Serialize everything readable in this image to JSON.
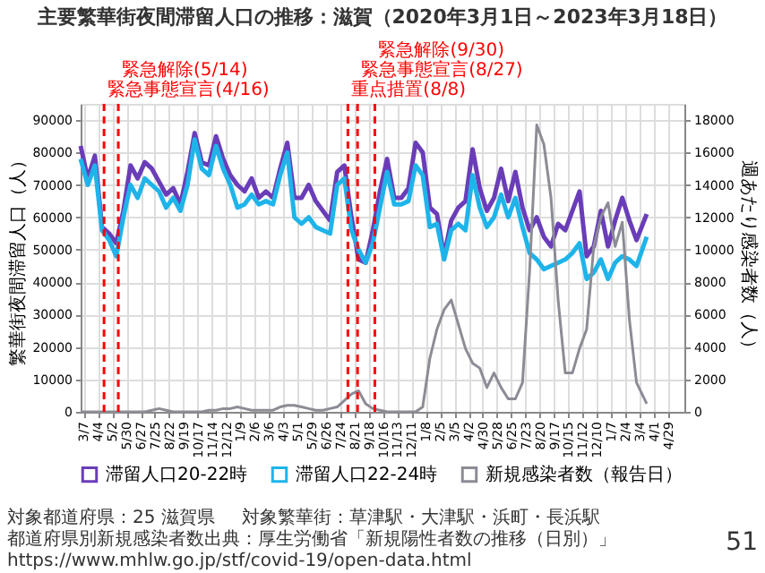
{
  "chart_data": {
    "type": "line",
    "title": "主要繁華街夜間滞留人口の推移：滋賀（2020年3月1日～2023年3月18日）",
    "ylabel": "繁華街夜間滞留人口（人）",
    "y2label": "週あたり感染者数（人）",
    "x": [
      "2020-03-01",
      "2020-03-15",
      "2020-03-29",
      "2020-04-12",
      "2020-04-26",
      "2020-05-10",
      "2020-05-24",
      "2020-06-07",
      "2020-06-21",
      "2020-07-05",
      "2020-07-19",
      "2020-08-02",
      "2020-08-16",
      "2020-08-30",
      "2020-09-13",
      "2020-09-27",
      "2020-10-11",
      "2020-10-25",
      "2020-11-08",
      "2020-11-22",
      "2020-12-06",
      "2020-12-20",
      "2021-01-03",
      "2021-01-17",
      "2021-01-31",
      "2021-02-14",
      "2021-02-28",
      "2021-03-14",
      "2021-03-28",
      "2021-04-11",
      "2021-04-25",
      "2021-05-09",
      "2021-05-23",
      "2021-06-06",
      "2021-06-20",
      "2021-07-04",
      "2021-07-18",
      "2021-08-01",
      "2021-08-15",
      "2021-08-29",
      "2021-09-12",
      "2021-09-26",
      "2021-10-10",
      "2021-10-24",
      "2021-11-07",
      "2021-11-21",
      "2021-12-05",
      "2021-12-19",
      "2022-01-02",
      "2022-01-16",
      "2022-01-30",
      "2022-02-13",
      "2022-02-27",
      "2022-03-13",
      "2022-03-27",
      "2022-04-10",
      "2022-04-24",
      "2022-05-08",
      "2022-05-22",
      "2022-06-05",
      "2022-06-19",
      "2022-07-03",
      "2022-07-17",
      "2022-07-31",
      "2022-08-14",
      "2022-08-28",
      "2022-09-11",
      "2022-09-25",
      "2022-10-09",
      "2022-10-23",
      "2022-11-06",
      "2022-11-20",
      "2022-12-04",
      "2022-12-18",
      "2023-01-01",
      "2023-01-15",
      "2023-01-29",
      "2023-02-12",
      "2023-02-26",
      "2023-03-18"
    ],
    "series": [
      {
        "name": "滞留人口20-22時",
        "color": "#6a3db8",
        "values": [
          82000,
          72000,
          79000,
          57000,
          55000,
          52000,
          62000,
          76000,
          72000,
          77000,
          75000,
          71000,
          67000,
          69000,
          64000,
          74000,
          86000,
          77000,
          76000,
          85000,
          78000,
          73000,
          70000,
          68000,
          72000,
          66000,
          68000,
          66000,
          75000,
          83000,
          66000,
          66000,
          70000,
          65000,
          62000,
          59000,
          74000,
          76000,
          60000,
          47000,
          46000,
          56000,
          68000,
          78000,
          66000,
          66000,
          69000,
          83000,
          80000,
          63000,
          61000,
          48000,
          59000,
          63000,
          65000,
          81000,
          69000,
          62000,
          66000,
          75000,
          65000,
          74000,
          63000,
          56000,
          60000,
          54000,
          51000,
          58000,
          56000,
          62000,
          68000,
          48000,
          51000,
          62000,
          51000,
          59000,
          66000,
          59000,
          53000,
          61000
        ]
      },
      {
        "name": "滞留人口22-24時",
        "color": "#1eb4ea",
        "values": [
          78000,
          70000,
          76000,
          56000,
          53000,
          48000,
          60000,
          70000,
          66000,
          72000,
          70000,
          68000,
          63000,
          66000,
          62000,
          70000,
          84000,
          75000,
          73000,
          82000,
          75000,
          70000,
          63000,
          64000,
          67000,
          64000,
          65000,
          64000,
          73000,
          80000,
          60000,
          58000,
          60000,
          57000,
          56000,
          55000,
          70000,
          72000,
          56000,
          50000,
          46000,
          52000,
          63000,
          74000,
          64000,
          64000,
          65000,
          76000,
          73000,
          57000,
          58000,
          47000,
          56000,
          58000,
          56000,
          73000,
          63000,
          57000,
          60000,
          67000,
          60000,
          66000,
          57000,
          49000,
          47000,
          44000,
          45000,
          46000,
          47000,
          49000,
          52000,
          41000,
          43000,
          47000,
          41000,
          46000,
          48000,
          47000,
          45000,
          54000
        ]
      },
      {
        "name": "新規感染者数（報告日）",
        "color": "#8c8c96",
        "axis": "y2",
        "values": [
          0,
          0,
          0,
          0,
          0,
          0,
          0,
          0,
          0,
          0,
          100,
          200,
          100,
          0,
          0,
          0,
          0,
          0,
          100,
          100,
          200,
          200,
          300,
          200,
          100,
          100,
          100,
          100,
          300,
          400,
          400,
          300,
          200,
          100,
          100,
          200,
          300,
          700,
          1100,
          1300,
          500,
          200,
          100,
          0,
          0,
          0,
          0,
          0,
          300,
          3300,
          5100,
          6300,
          6900,
          5400,
          3900,
          3000,
          2700,
          1500,
          2400,
          1500,
          800,
          800,
          1800,
          8700,
          17700,
          16500,
          13200,
          6900,
          2400,
          2400,
          3900,
          5100,
          10200,
          12000,
          12900,
          10200,
          11700,
          5700,
          1800,
          500
        ]
      }
    ],
    "xlim": [
      "2020-03-01",
      "2023-05-31"
    ],
    "xticks": [
      {
        "value": "2020-03-07",
        "label": "3/7"
      },
      {
        "value": "2020-04-04",
        "label": "4/4"
      },
      {
        "value": "2020-05-02",
        "label": "5/2"
      },
      {
        "value": "2020-05-30",
        "label": "5/30"
      },
      {
        "value": "2020-06-27",
        "label": "6/27"
      },
      {
        "value": "2020-07-25",
        "label": "7/25"
      },
      {
        "value": "2020-08-22",
        "label": "8/22"
      },
      {
        "value": "2020-09-19",
        "label": "9/19"
      },
      {
        "value": "2020-10-17",
        "label": "10/17"
      },
      {
        "value": "2020-11-14",
        "label": "11/14"
      },
      {
        "value": "2020-12-12",
        "label": "12/12"
      },
      {
        "value": "2021-01-09",
        "label": "1/9"
      },
      {
        "value": "2021-02-06",
        "label": "2/6"
      },
      {
        "value": "2021-03-06",
        "label": "3/6"
      },
      {
        "value": "2021-04-03",
        "label": "4/3"
      },
      {
        "value": "2021-05-01",
        "label": "5/1"
      },
      {
        "value": "2021-05-29",
        "label": "5/29"
      },
      {
        "value": "2021-06-26",
        "label": "6/26"
      },
      {
        "value": "2021-07-24",
        "label": "7/24"
      },
      {
        "value": "2021-08-21",
        "label": "8/21"
      },
      {
        "value": "2021-09-18",
        "label": "9/18"
      },
      {
        "value": "2021-10-16",
        "label": "10/16"
      },
      {
        "value": "2021-11-13",
        "label": "11/13"
      },
      {
        "value": "2021-12-11",
        "label": "12/11"
      },
      {
        "value": "2022-01-08",
        "label": "1/8"
      },
      {
        "value": "2022-02-05",
        "label": "2/5"
      },
      {
        "value": "2022-03-05",
        "label": "3/5"
      },
      {
        "value": "2022-04-02",
        "label": "4/2"
      },
      {
        "value": "2022-04-30",
        "label": "4/30"
      },
      {
        "value": "2022-05-28",
        "label": "5/28"
      },
      {
        "value": "2022-06-25",
        "label": "6/25"
      },
      {
        "value": "2022-07-23",
        "label": "7/23"
      },
      {
        "value": "2022-08-20",
        "label": "8/20"
      },
      {
        "value": "2022-09-17",
        "label": "9/17"
      },
      {
        "value": "2022-10-15",
        "label": "10/15"
      },
      {
        "value": "2022-11-12",
        "label": "11/12"
      },
      {
        "value": "2022-12-10",
        "label": "12/10"
      },
      {
        "value": "2023-01-07",
        "label": "1/7"
      },
      {
        "value": "2023-02-04",
        "label": "2/4"
      },
      {
        "value": "2023-03-04",
        "label": "3/4"
      },
      {
        "value": "2023-04-01",
        "label": "4/1"
      },
      {
        "value": "2023-04-29",
        "label": "4/29"
      }
    ],
    "ylim": [
      0,
      95000
    ],
    "yticks": [
      0,
      10000,
      20000,
      30000,
      40000,
      50000,
      60000,
      70000,
      80000,
      90000
    ],
    "y2lim": [
      0,
      19000
    ],
    "y2ticks": [
      0,
      2000,
      4000,
      6000,
      8000,
      10000,
      12000,
      14000,
      16000,
      18000
    ],
    "ref_lines": [
      {
        "axis": "x",
        "value": "2020-04-16",
        "label": "緊急事態宣言(4/16)",
        "color": "#ff0000",
        "line_style": "dashed"
      },
      {
        "axis": "x",
        "value": "2020-05-14",
        "label": "緊急解除(5/14)",
        "color": "#ff0000",
        "line_style": "dashed"
      },
      {
        "axis": "x",
        "value": "2021-08-08",
        "label": "重点措置(8/8)",
        "color": "#ff0000",
        "line_style": "dashed"
      },
      {
        "axis": "x",
        "value": "2021-08-27",
        "label": "緊急事態宣言(8/27)",
        "color": "#ff0000",
        "line_style": "dashed"
      },
      {
        "axis": "x",
        "value": "2021-09-30",
        "label": "緊急解除(9/30)",
        "color": "#ff0000",
        "line_style": "dashed"
      }
    ],
    "grid": true,
    "legend": "bottom",
    "annotations": [
      "対象都道府県：25 滋賀県",
      "対象繁華街：草津駅・大津駅・浜町・長浜駅",
      "都道府県別新規感染者数出典：厚生労働省「新規陽性者数の推移（日別）」\nhttps://www.mhlw.go.jp/stf/covid-19/open-data.html",
      "51"
    ]
  }
}
